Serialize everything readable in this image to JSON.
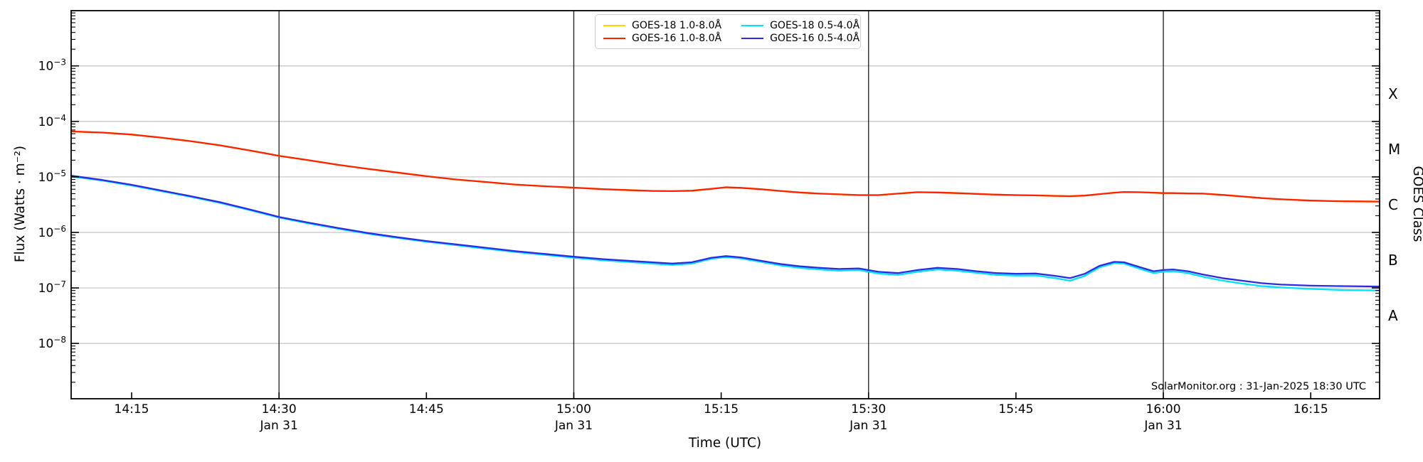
{
  "figure": {
    "xlabel": "Time (UTC)",
    "ylabel": "Flux (Watts · m⁻²)",
    "right_axis_label": "GOES Class",
    "watermark": "SolarMonitor.org : 31-Jan-2025 18:30 UTC"
  },
  "chart_data": {
    "type": "line",
    "title": "",
    "xlabel": "Time (UTC)",
    "ylabel": "Flux (Watts · m⁻²)",
    "x_axis": {
      "kind": "time",
      "range_utc": [
        "14:09",
        "16:22"
      ],
      "date": "Jan 31",
      "ticks": [
        {
          "label": "14:15",
          "date": ""
        },
        {
          "label": "14:30",
          "date": "Jan 31"
        },
        {
          "label": "14:45",
          "date": ""
        },
        {
          "label": "15:00",
          "date": "Jan 31"
        },
        {
          "label": "15:15",
          "date": ""
        },
        {
          "label": "15:30",
          "date": "Jan 31"
        },
        {
          "label": "15:45",
          "date": ""
        },
        {
          "label": "16:00",
          "date": "Jan 31"
        },
        {
          "label": "16:15",
          "date": ""
        }
      ],
      "guide_line_times_min": [
        30,
        60,
        90,
        120
      ]
    },
    "y_axis": {
      "scale": "log",
      "range": [
        1e-09,
        0.01
      ],
      "tick_exponents": [
        -3,
        -4,
        -5,
        -6,
        -7,
        -8
      ],
      "gridline_exponents": [
        -3,
        -4,
        -5,
        -6,
        -7,
        -8
      ]
    },
    "goes_class_labels": [
      "X",
      "M",
      "C",
      "B",
      "A"
    ],
    "x_minutes_after_1400": [
      8.85,
      12,
      15,
      18,
      21,
      24,
      27,
      30,
      33,
      36,
      39,
      42,
      45,
      48,
      51,
      54,
      57,
      60,
      63,
      66,
      68,
      70,
      72,
      74,
      75.5,
      77,
      79,
      81,
      83,
      85,
      87,
      89,
      91,
      93,
      95,
      97,
      99,
      101,
      103,
      105,
      107,
      109,
      110.5,
      112,
      113.5,
      115,
      116,
      117.5,
      119,
      120,
      121,
      122.5,
      124,
      126,
      128,
      130,
      132,
      135,
      138,
      142
    ],
    "series": [
      {
        "name": "GOES-18 1.0-8.0Å",
        "color": "#ffd400",
        "values": [
          6.6e-05,
          6.3e-05,
          5.8e-05,
          5.1e-05,
          4.4e-05,
          3.7e-05,
          3e-05,
          2.4e-05,
          2e-05,
          1.65e-05,
          1.4e-05,
          1.2e-05,
          1.03e-05,
          9e-06,
          8.1e-06,
          7.3e-06,
          6.8e-06,
          6.4e-06,
          6e-06,
          5.75e-06,
          5.6e-06,
          5.55e-06,
          5.65e-06,
          6.1e-06,
          6.5e-06,
          6.35e-06,
          6e-06,
          5.6e-06,
          5.25e-06,
          5e-06,
          4.85e-06,
          4.7e-06,
          4.7e-06,
          5e-06,
          5.3e-06,
          5.25e-06,
          5.1e-06,
          4.95e-06,
          4.8e-06,
          4.7e-06,
          4.65e-06,
          4.55e-06,
          4.5e-06,
          4.6e-06,
          4.9e-06,
          5.2e-06,
          5.35e-06,
          5.3e-06,
          5.2e-06,
          5.1e-06,
          5.1e-06,
          5.05e-06,
          5e-06,
          4.75e-06,
          4.45e-06,
          4.15e-06,
          3.95e-06,
          3.75e-06,
          3.65e-06,
          3.6e-06
        ]
      },
      {
        "name": "GOES-16 1.0-8.0Å",
        "color": "#ff2200",
        "values": [
          6.6e-05,
          6.3e-05,
          5.8e-05,
          5.1e-05,
          4.4e-05,
          3.7e-05,
          3e-05,
          2.4e-05,
          2e-05,
          1.65e-05,
          1.4e-05,
          1.2e-05,
          1.03e-05,
          9e-06,
          8.1e-06,
          7.3e-06,
          6.8e-06,
          6.4e-06,
          6e-06,
          5.75e-06,
          5.6e-06,
          5.55e-06,
          5.65e-06,
          6.1e-06,
          6.5e-06,
          6.35e-06,
          6e-06,
          5.6e-06,
          5.25e-06,
          5e-06,
          4.85e-06,
          4.7e-06,
          4.7e-06,
          5e-06,
          5.3e-06,
          5.25e-06,
          5.1e-06,
          4.95e-06,
          4.8e-06,
          4.7e-06,
          4.65e-06,
          4.55e-06,
          4.5e-06,
          4.6e-06,
          4.9e-06,
          5.2e-06,
          5.35e-06,
          5.3e-06,
          5.2e-06,
          5.1e-06,
          5.1e-06,
          5.05e-06,
          5e-06,
          4.75e-06,
          4.45e-06,
          4.15e-06,
          3.95e-06,
          3.75e-06,
          3.65e-06,
          3.6e-06
        ]
      },
      {
        "name": "GOES-18 0.5-4.0Å",
        "color": "#00e1ff",
        "values": [
          1.02e-05,
          8.6e-06,
          7e-06,
          5.55e-06,
          4.38e-06,
          3.4e-06,
          2.53e-06,
          1.85e-06,
          1.46e-06,
          1.17e-06,
          9.5e-07,
          8e-07,
          6.8e-07,
          5.9e-07,
          5.1e-07,
          4.45e-07,
          3.95e-07,
          3.5e-07,
          3.15e-07,
          2.9e-07,
          2.75e-07,
          2.6e-07,
          2.75e-07,
          3.35e-07,
          3.6e-07,
          3.4e-07,
          2.95e-07,
          2.55e-07,
          2.3e-07,
          2.15e-07,
          2.05e-07,
          2.1e-07,
          1.82e-07,
          1.72e-07,
          1.95e-07,
          2.15e-07,
          2.05e-07,
          1.87e-07,
          1.72e-07,
          1.67e-07,
          1.68e-07,
          1.5e-07,
          1.35e-07,
          1.65e-07,
          2.35e-07,
          2.8e-07,
          2.75e-07,
          2.25e-07,
          1.85e-07,
          1.95e-07,
          2e-07,
          1.85e-07,
          1.6e-07,
          1.36e-07,
          1.2e-07,
          1.08e-07,
          1.02e-07,
          9.6e-08,
          9.2e-08,
          9e-08
        ]
      },
      {
        "name": "GOES-16 0.5-4.0Å",
        "color": "#2b2be6",
        "values": [
          1.05e-05,
          8.8e-06,
          7.2e-06,
          5.7e-06,
          4.5e-06,
          3.5e-06,
          2.6e-06,
          1.9e-06,
          1.5e-06,
          1.2e-06,
          9.8e-07,
          8.2e-07,
          7e-07,
          6.1e-07,
          5.3e-07,
          4.6e-07,
          4.1e-07,
          3.65e-07,
          3.3e-07,
          3.05e-07,
          2.9e-07,
          2.75e-07,
          2.9e-07,
          3.5e-07,
          3.75e-07,
          3.55e-07,
          3.1e-07,
          2.7e-07,
          2.45e-07,
          2.3e-07,
          2.2e-07,
          2.25e-07,
          1.95e-07,
          1.85e-07,
          2.1e-07,
          2.3e-07,
          2.2e-07,
          2e-07,
          1.85e-07,
          1.8e-07,
          1.82e-07,
          1.65e-07,
          1.5e-07,
          1.8e-07,
          2.5e-07,
          2.95e-07,
          2.9e-07,
          2.4e-07,
          2e-07,
          2.1e-07,
          2.15e-07,
          2e-07,
          1.75e-07,
          1.5e-07,
          1.35e-07,
          1.22e-07,
          1.15e-07,
          1.1e-07,
          1.08e-07,
          1.06e-07
        ]
      }
    ],
    "legend": {
      "position": "top-center",
      "order": [
        0,
        2,
        1,
        3
      ]
    },
    "style": {
      "grid_color": "#c8c8c8",
      "guide_line_color": "#1c1c1c",
      "spine_color": "#000000",
      "background": "#ffffff"
    }
  }
}
